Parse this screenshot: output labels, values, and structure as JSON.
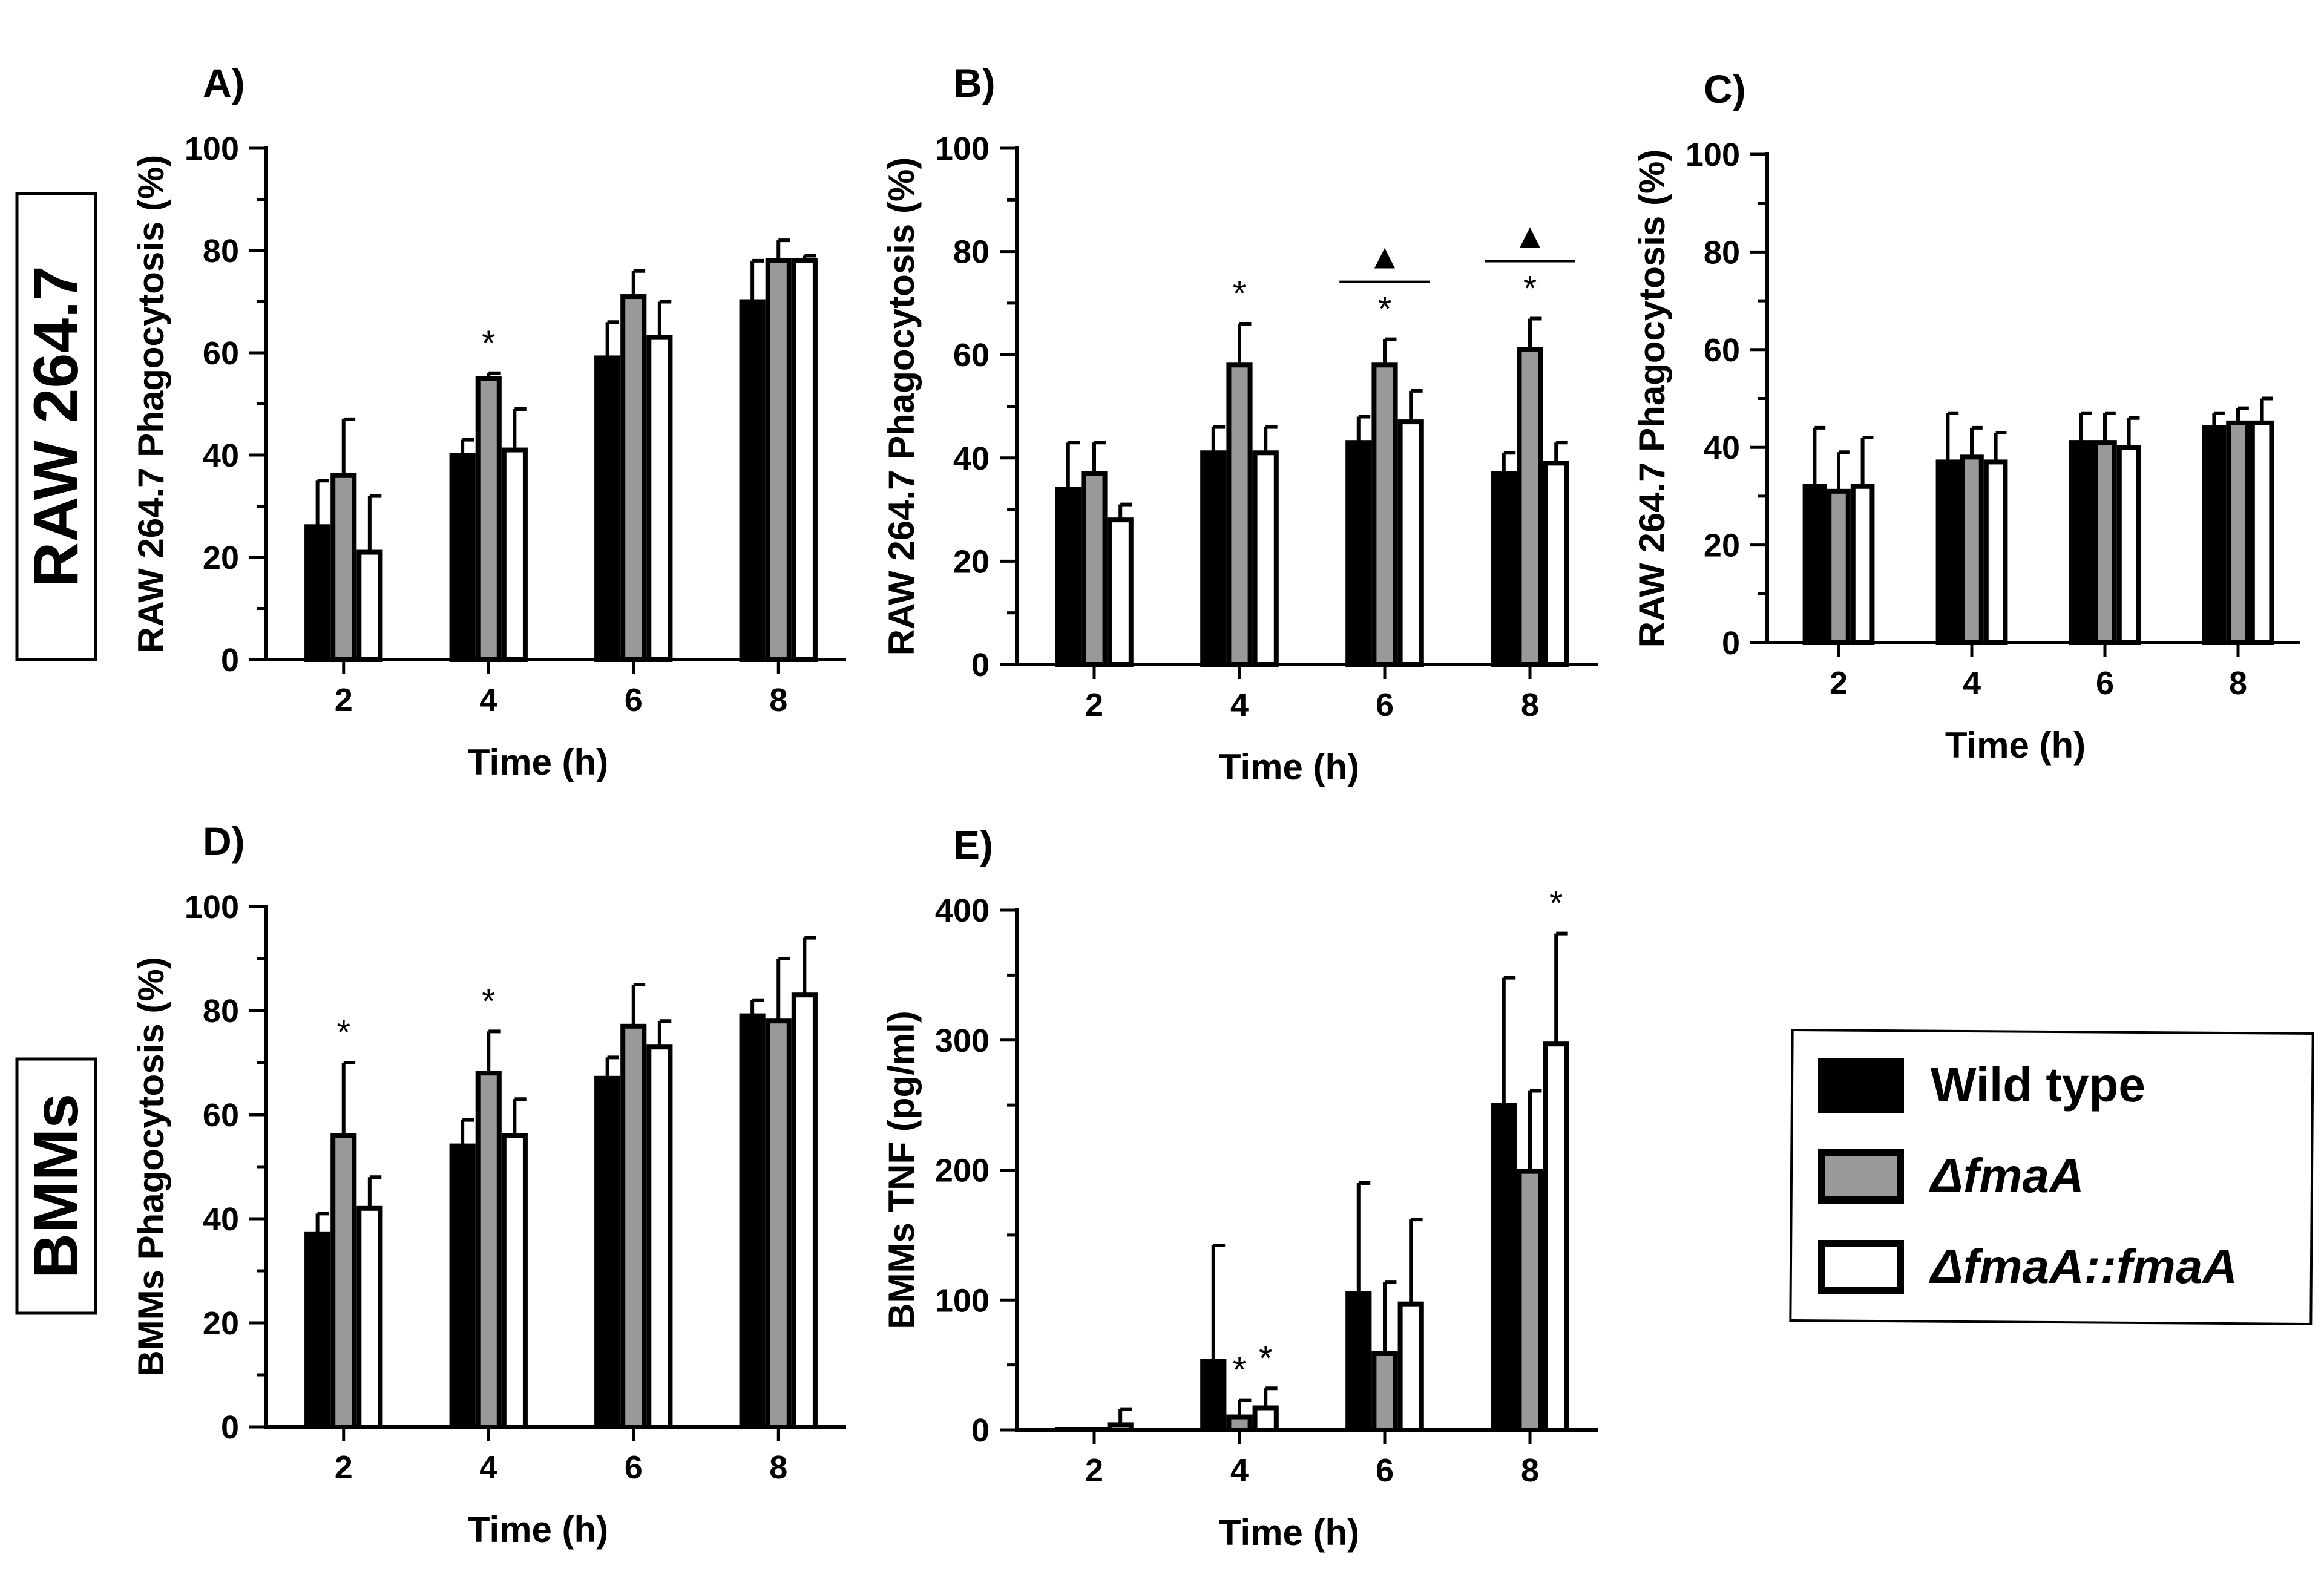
{
  "row_labels": [
    "RAW 264.7",
    "BMMs"
  ],
  "legend": {
    "entries": [
      {
        "label": "Wild type",
        "color": "#000000",
        "italic": false
      },
      {
        "label": "ΔfmaA",
        "color": "#999999",
        "italic": true
      },
      {
        "label": "ΔfmaA::fmaA",
        "color": "#ffffff",
        "italic": true
      }
    ]
  },
  "chart_data": [
    {
      "panel": "A)",
      "type": "bar",
      "xlabel": "Time (h)",
      "ylabel": "RAW 264.7 Phagocytosis (%)",
      "ylim": [
        0,
        100
      ],
      "yticks": [
        0,
        20,
        40,
        60,
        80,
        100
      ],
      "categories": [
        "2",
        "4",
        "6",
        "8"
      ],
      "series": [
        {
          "name": "Wild type",
          "values": [
            26,
            40,
            59,
            70
          ],
          "errors": [
            9,
            3,
            7,
            8
          ]
        },
        {
          "name": "ΔfmaA",
          "values": [
            36,
            55,
            71,
            78
          ],
          "errors": [
            11,
            1,
            5,
            4
          ]
        },
        {
          "name": "ΔfmaA::fmaA",
          "values": [
            21,
            41,
            63,
            78
          ],
          "errors": [
            11,
            8,
            7,
            1
          ]
        }
      ],
      "annotations": [
        {
          "group": 1,
          "series": 1,
          "text": "*"
        }
      ],
      "brackets": []
    },
    {
      "panel": "B)",
      "type": "bar",
      "xlabel": "Time (h)",
      "ylabel": "RAW 264.7 Phagocytosis (%)",
      "ylim": [
        0,
        100
      ],
      "yticks": [
        0,
        20,
        40,
        60,
        80,
        100
      ],
      "categories": [
        "2",
        "4",
        "6",
        "8"
      ],
      "series": [
        {
          "name": "Wild type",
          "values": [
            34,
            41,
            43,
            37
          ],
          "errors": [
            9,
            5,
            5,
            4
          ]
        },
        {
          "name": "ΔfmaA",
          "values": [
            37,
            58,
            58,
            61
          ],
          "errors": [
            6,
            8,
            5,
            6
          ]
        },
        {
          "name": "ΔfmaA::fmaA",
          "values": [
            28,
            41,
            47,
            39
          ],
          "errors": [
            3,
            5,
            6,
            4
          ]
        }
      ],
      "annotations": [
        {
          "group": 1,
          "series": 1,
          "text": "*"
        },
        {
          "group": 2,
          "series": 1,
          "text": "*"
        },
        {
          "group": 3,
          "series": 1,
          "text": "*"
        }
      ],
      "brackets": [
        {
          "group": 2,
          "symbol": "▲"
        },
        {
          "group": 3,
          "symbol": "▲"
        }
      ]
    },
    {
      "panel": "C)",
      "type": "bar",
      "xlabel": "Time (h)",
      "ylabel": "RAW 264.7 Phagocytosis (%)",
      "ylim": [
        0,
        100
      ],
      "yticks": [
        0,
        20,
        40,
        60,
        80,
        100
      ],
      "categories": [
        "2",
        "4",
        "6",
        "8"
      ],
      "series": [
        {
          "name": "Wild type",
          "values": [
            32,
            37,
            41,
            44
          ],
          "errors": [
            12,
            10,
            6,
            3
          ]
        },
        {
          "name": "ΔfmaA",
          "values": [
            31,
            38,
            41,
            45
          ],
          "errors": [
            8,
            6,
            6,
            3
          ]
        },
        {
          "name": "ΔfmaA::fmaA",
          "values": [
            32,
            37,
            40,
            45
          ],
          "errors": [
            10,
            6,
            6,
            5
          ]
        }
      ],
      "annotations": [],
      "brackets": []
    },
    {
      "panel": "D)",
      "type": "bar",
      "xlabel": "Time (h)",
      "ylabel": "BMMs Phagocytosis (%)",
      "ylim": [
        0,
        100
      ],
      "yticks": [
        0,
        20,
        40,
        60,
        80,
        100
      ],
      "categories": [
        "2",
        "4",
        "6",
        "8"
      ],
      "series": [
        {
          "name": "Wild type",
          "values": [
            37,
            54,
            67,
            79
          ],
          "errors": [
            4,
            5,
            4,
            3
          ]
        },
        {
          "name": "ΔfmaA",
          "values": [
            56,
            68,
            77,
            78
          ],
          "errors": [
            14,
            8,
            8,
            12
          ]
        },
        {
          "name": "ΔfmaA::fmaA",
          "values": [
            42,
            56,
            73,
            83
          ],
          "errors": [
            6,
            7,
            5,
            11
          ]
        }
      ],
      "annotations": [
        {
          "group": 0,
          "series": 1,
          "text": "*"
        },
        {
          "group": 1,
          "series": 1,
          "text": "*"
        }
      ],
      "brackets": []
    },
    {
      "panel": "E)",
      "type": "bar",
      "xlabel": "Time (h)",
      "ylabel": "BMMs TNF (pg/ml)",
      "ylim": [
        0,
        400
      ],
      "yticks": [
        0,
        100,
        200,
        300,
        400
      ],
      "categories": [
        "2",
        "4",
        "6",
        "8"
      ],
      "series": [
        {
          "name": "Wild type",
          "values": [
            0,
            53,
            105,
            250
          ],
          "errors": [
            0,
            89,
            85,
            98
          ]
        },
        {
          "name": "ΔfmaA",
          "values": [
            0,
            10,
            59,
            199
          ],
          "errors": [
            0,
            13,
            55,
            62
          ]
        },
        {
          "name": "ΔfmaA::fmaA",
          "values": [
            4,
            17,
            97,
            297
          ],
          "errors": [
            12,
            15,
            65,
            85
          ]
        }
      ],
      "annotations": [
        {
          "group": 1,
          "series": 1,
          "text": "*"
        },
        {
          "group": 1,
          "series": 2,
          "text": "*"
        },
        {
          "group": 3,
          "series": 2,
          "text": "*"
        }
      ],
      "brackets": []
    }
  ]
}
